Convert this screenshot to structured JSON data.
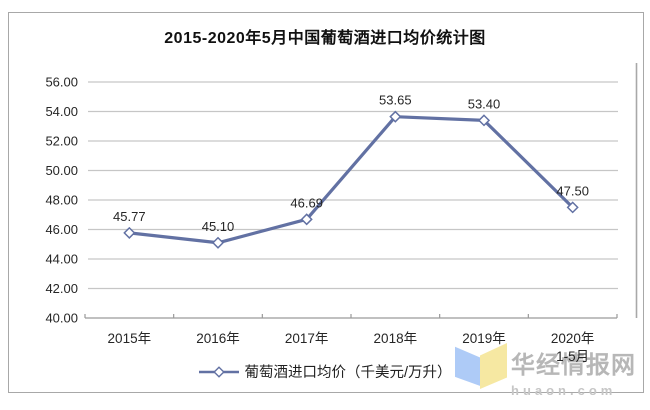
{
  "title": "2015-2020年5月中国葡萄酒进口均价统计图",
  "legend": {
    "label": "葡萄酒进口均价（千美元/万升）"
  },
  "watermark": {
    "site_name": "华经情报网",
    "site_domain": "huaon.com"
  },
  "colors": {
    "line": "#6271a3",
    "marker_fill": "#ffffff",
    "grid": "#c6c6c6",
    "axis": "#9a9a9a",
    "right_border": "#a8a8a8",
    "text": "#262626",
    "logo_blue": "#aecbf7",
    "logo_yellow": "#f6e8a2"
  },
  "chart_data": {
    "type": "line",
    "title": "2015-2020年5月中国葡萄酒进口均价统计图",
    "categories": [
      "2015年",
      "2016年",
      "2017年",
      "2018年",
      "2019年",
      "2020年\n1-5月"
    ],
    "series": [
      {
        "name": "葡萄酒进口均价（千美元/万升）",
        "values": [
          45.77,
          45.1,
          46.69,
          53.65,
          53.4,
          47.5
        ]
      }
    ],
    "data_labels": [
      "45.77",
      "45.10",
      "46.69",
      "53.65",
      "53.40",
      "47.50"
    ],
    "xlabel": "",
    "ylabel": "",
    "ylim": [
      40,
      56
    ],
    "ytick_step": 2,
    "ytick_labels": [
      "40.00",
      "42.00",
      "44.00",
      "46.00",
      "48.00",
      "50.00",
      "52.00",
      "54.00",
      "56.00"
    ],
    "grid": true,
    "legend_position": "bottom",
    "marker": "diamond"
  }
}
